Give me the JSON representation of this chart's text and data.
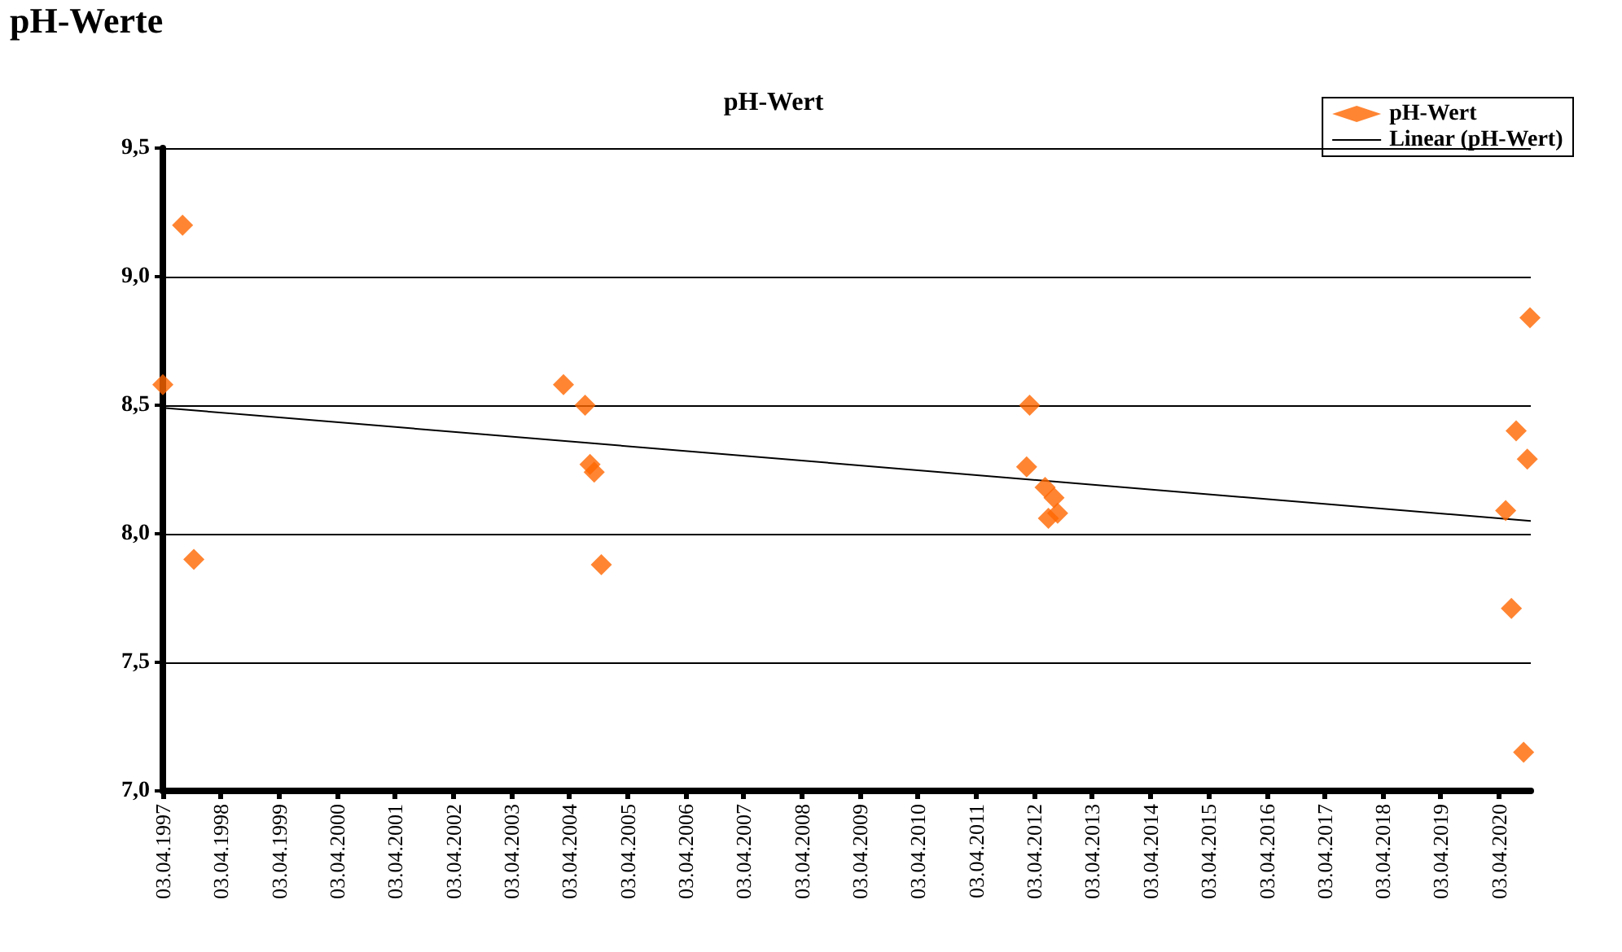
{
  "chart_data": {
    "type": "scatter",
    "title": "pH-Wert",
    "annotations": [
      "pH-Werte"
    ],
    "x": [
      "1997-04-03",
      "1997-08-05",
      "1997-10-15",
      "2004-02-25",
      "2004-07-10",
      "2004-08-10",
      "2004-09-05",
      "2004-10-20",
      "2012-03-05",
      "2012-02-15",
      "2012-06-10",
      "2012-08-05",
      "2012-07-01",
      "2012-08-28",
      "2020-05-15",
      "2020-06-20",
      "2020-07-20",
      "2020-09-05",
      "2020-09-28",
      "2020-10-15"
    ],
    "series": [
      {
        "name": "pH-Wert",
        "type": "scatter",
        "color": "#ff6600",
        "marker": "diamond",
        "values": [
          8.58,
          9.2,
          7.9,
          8.58,
          8.5,
          8.27,
          8.24,
          7.88,
          8.5,
          8.26,
          8.18,
          8.14,
          8.06,
          8.08,
          8.09,
          7.71,
          8.4,
          7.15,
          8.29,
          8.84
        ]
      },
      {
        "name": "Linear (pH-Wert)",
        "type": "line",
        "color": "#000000",
        "marker": "none",
        "line_style": "solid",
        "x": [
          "1997-04-03",
          "2020-10-20"
        ],
        "values": [
          8.49,
          8.05
        ]
      }
    ],
    "xlim": [
      "1997-04-03",
      "2020-10-20"
    ],
    "xticks": [
      {
        "value": "1997-04-03",
        "label": "03.04.1997"
      },
      {
        "value": "1998-04-03",
        "label": "03.04.1998"
      },
      {
        "value": "1999-04-03",
        "label": "03.04.1999"
      },
      {
        "value": "2000-04-03",
        "label": "03.04.2000"
      },
      {
        "value": "2001-04-03",
        "label": "03.04.2001"
      },
      {
        "value": "2002-04-03",
        "label": "03.04.2002"
      },
      {
        "value": "2003-04-03",
        "label": "03.04.2003"
      },
      {
        "value": "2004-04-03",
        "label": "03.04.2004"
      },
      {
        "value": "2005-04-03",
        "label": "03.04.2005"
      },
      {
        "value": "2006-04-03",
        "label": "03.04.2006"
      },
      {
        "value": "2007-04-03",
        "label": "03.04.2007"
      },
      {
        "value": "2008-04-03",
        "label": "03.04.2008"
      },
      {
        "value": "2009-04-03",
        "label": "03.04.2009"
      },
      {
        "value": "2010-04-03",
        "label": "03.04.2010"
      },
      {
        "value": "2011-04-03",
        "label": "03.04.2011"
      },
      {
        "value": "2012-04-03",
        "label": "03.04.2012"
      },
      {
        "value": "2013-04-03",
        "label": "03.04.2013"
      },
      {
        "value": "2014-04-03",
        "label": "03.04.2014"
      },
      {
        "value": "2015-04-03",
        "label": "03.04.2015"
      },
      {
        "value": "2016-04-03",
        "label": "03.04.2016"
      },
      {
        "value": "2017-04-03",
        "label": "03.04.2017"
      },
      {
        "value": "2018-04-03",
        "label": "03.04.2018"
      },
      {
        "value": "2019-04-03",
        "label": "03.04.2019"
      },
      {
        "value": "2020-04-03",
        "label": "03.04.2020"
      }
    ],
    "ylim": [
      7.0,
      9.5
    ],
    "yticks": [
      {
        "value": 7.0,
        "label": "7,0"
      },
      {
        "value": 7.5,
        "label": "7,5"
      },
      {
        "value": 8.0,
        "label": "8,0"
      },
      {
        "value": 8.5,
        "label": "8,5"
      },
      {
        "value": 9.0,
        "label": "9,0"
      },
      {
        "value": 9.5,
        "label": "9,5"
      }
    ],
    "grid": "y",
    "legend": "top right"
  }
}
